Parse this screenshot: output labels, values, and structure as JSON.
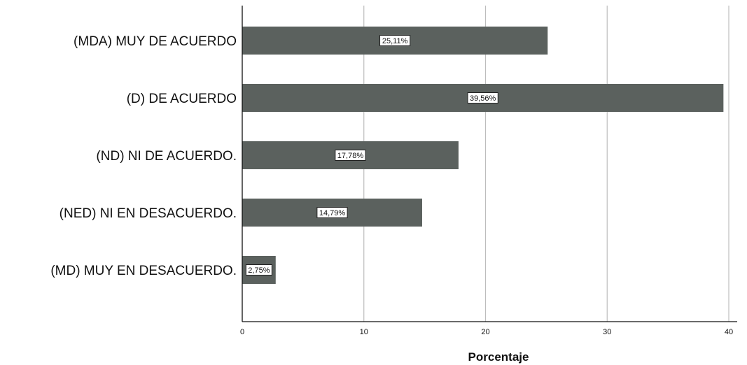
{
  "chart_data": {
    "type": "bar",
    "orientation": "horizontal",
    "categories": [
      "(MDA) MUY DE ACUERDO",
      "(D) DE ACUERDO",
      "(ND) NI DE ACUERDO.",
      "(NED) NI EN DESACUERDO.",
      "(MD) MUY EN DESACUERDO."
    ],
    "values": [
      25.11,
      39.56,
      17.78,
      14.79,
      2.75
    ],
    "data_labels": [
      "25,11%",
      "39,56%",
      "17,78%",
      "14,79%",
      "2,75%"
    ],
    "xlabel": "Porcentaje",
    "ylabel": "",
    "xlim": [
      0,
      40
    ],
    "xticks": [
      0,
      10,
      20,
      30,
      40
    ],
    "xtick_labels": [
      "0",
      "10",
      "20",
      "30",
      "40"
    ],
    "grid": "vertical",
    "legend": "none",
    "bar_color": "#5b615e",
    "grid_color": "#bdbdbd"
  }
}
